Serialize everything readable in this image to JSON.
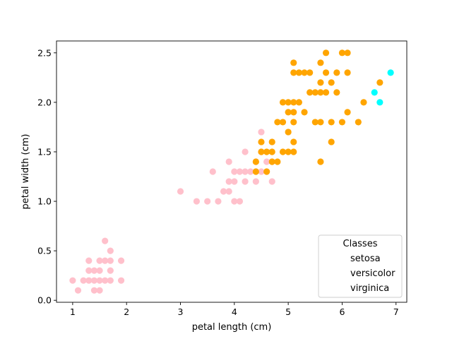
{
  "chart_data": {
    "type": "scatter",
    "xlabel": "petal length (cm)",
    "ylabel": "petal width (cm)",
    "xlim": [
      0.7,
      7.2
    ],
    "ylim": [
      -0.02,
      2.62
    ],
    "xticks": [
      1,
      2,
      3,
      4,
      5,
      6,
      7
    ],
    "yticks": [
      0.0,
      0.5,
      1.0,
      1.5,
      2.0,
      2.5
    ],
    "ytick_labels": [
      "0.0",
      "0.5",
      "1.0",
      "1.5",
      "2.0",
      "2.5"
    ],
    "grid": false,
    "legend": {
      "title": "Classes",
      "placement": "lower-right",
      "entries": [
        "setosa",
        "versicolor",
        "virginica"
      ]
    },
    "series": [
      {
        "color": "#ffc0cb",
        "points": [
          [
            1.0,
            0.2
          ],
          [
            1.1,
            0.1
          ],
          [
            1.2,
            0.2
          ],
          [
            1.3,
            0.2
          ],
          [
            1.3,
            0.3
          ],
          [
            1.3,
            0.4
          ],
          [
            1.4,
            0.1
          ],
          [
            1.4,
            0.2
          ],
          [
            1.4,
            0.3
          ],
          [
            1.5,
            0.1
          ],
          [
            1.5,
            0.2
          ],
          [
            1.5,
            0.3
          ],
          [
            1.5,
            0.4
          ],
          [
            1.6,
            0.2
          ],
          [
            1.6,
            0.4
          ],
          [
            1.6,
            0.6
          ],
          [
            1.7,
            0.2
          ],
          [
            1.7,
            0.3
          ],
          [
            1.7,
            0.4
          ],
          [
            1.7,
            0.5
          ],
          [
            1.9,
            0.2
          ],
          [
            1.9,
            0.4
          ],
          [
            3.0,
            1.1
          ],
          [
            3.3,
            1.0
          ],
          [
            3.5,
            1.0
          ],
          [
            3.6,
            1.3
          ],
          [
            3.7,
            1.0
          ],
          [
            3.8,
            1.1
          ],
          [
            3.9,
            1.1
          ],
          [
            3.9,
            1.2
          ],
          [
            3.9,
            1.4
          ],
          [
            4.0,
            1.0
          ],
          [
            4.0,
            1.2
          ],
          [
            4.0,
            1.3
          ],
          [
            4.1,
            1.0
          ],
          [
            4.1,
            1.3
          ],
          [
            4.2,
            1.2
          ],
          [
            4.2,
            1.3
          ],
          [
            4.2,
            1.5
          ],
          [
            4.3,
            1.3
          ],
          [
            4.4,
            1.2
          ],
          [
            4.4,
            1.3
          ],
          [
            4.4,
            1.4
          ],
          [
            4.5,
            1.3
          ],
          [
            4.5,
            1.5
          ],
          [
            4.5,
            1.7
          ],
          [
            4.6,
            1.3
          ],
          [
            4.6,
            1.4
          ],
          [
            4.7,
            1.2
          ],
          [
            4.7,
            1.4
          ]
        ]
      },
      {
        "color": "#ffa500",
        "points": [
          [
            4.4,
            1.3
          ],
          [
            4.4,
            1.4
          ],
          [
            4.5,
            1.5
          ],
          [
            4.5,
            1.6
          ],
          [
            4.6,
            1.3
          ],
          [
            4.6,
            1.5
          ],
          [
            4.7,
            1.4
          ],
          [
            4.7,
            1.5
          ],
          [
            4.7,
            1.6
          ],
          [
            4.8,
            1.4
          ],
          [
            4.8,
            1.8
          ],
          [
            4.9,
            1.5
          ],
          [
            4.9,
            1.8
          ],
          [
            4.9,
            2.0
          ],
          [
            5.0,
            1.5
          ],
          [
            5.0,
            1.7
          ],
          [
            5.0,
            1.9
          ],
          [
            5.0,
            2.0
          ],
          [
            5.1,
            1.5
          ],
          [
            5.1,
            1.6
          ],
          [
            5.1,
            1.8
          ],
          [
            5.1,
            1.9
          ],
          [
            5.1,
            2.0
          ],
          [
            5.1,
            2.3
          ],
          [
            5.1,
            2.4
          ],
          [
            5.2,
            2.0
          ],
          [
            5.2,
            2.3
          ],
          [
            5.3,
            1.9
          ],
          [
            5.3,
            2.3
          ],
          [
            5.4,
            2.1
          ],
          [
            5.4,
            2.3
          ],
          [
            5.5,
            1.8
          ],
          [
            5.5,
            2.1
          ],
          [
            5.6,
            1.4
          ],
          [
            5.6,
            1.8
          ],
          [
            5.6,
            2.1
          ],
          [
            5.6,
            2.2
          ],
          [
            5.6,
            2.4
          ],
          [
            5.7,
            2.1
          ],
          [
            5.7,
            2.3
          ],
          [
            5.7,
            2.5
          ],
          [
            5.8,
            1.6
          ],
          [
            5.8,
            1.8
          ],
          [
            5.8,
            2.2
          ],
          [
            5.9,
            2.1
          ],
          [
            5.9,
            2.3
          ],
          [
            6.0,
            1.8
          ],
          [
            6.0,
            2.5
          ],
          [
            6.1,
            1.9
          ],
          [
            6.1,
            2.3
          ],
          [
            6.1,
            2.5
          ],
          [
            6.3,
            1.8
          ],
          [
            6.4,
            2.0
          ],
          [
            6.7,
            2.2
          ]
        ]
      },
      {
        "color": "#00ffff",
        "points": [
          [
            6.6,
            2.1
          ],
          [
            6.7,
            2.0
          ],
          [
            6.9,
            2.3
          ]
        ]
      }
    ]
  }
}
